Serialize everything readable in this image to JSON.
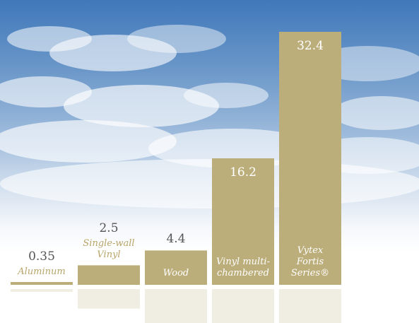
{
  "chart_data": {
    "type": "bar",
    "categories": [
      "Aluminum",
      "Single-wall\nVinyl",
      "Wood",
      "Vinyl multi-\nchambered",
      "Vytex\nFortis\nSeries®"
    ],
    "values": [
      0.35,
      2.5,
      4.4,
      16.2,
      32.4
    ],
    "value_labels": [
      "0.35",
      "2.5",
      "4.4",
      "16.2",
      "32.4"
    ],
    "ylim": [
      0,
      32.4
    ],
    "grid": false,
    "legend": "none"
  },
  "colors": {
    "bar": "#bcae7a",
    "bar_dark": "#a89a64",
    "value_text_outside": "#555555",
    "value_text_inside": "#ffffff",
    "category_text_outside": "#b8a56a",
    "category_text_inside": "#ffffff"
  }
}
